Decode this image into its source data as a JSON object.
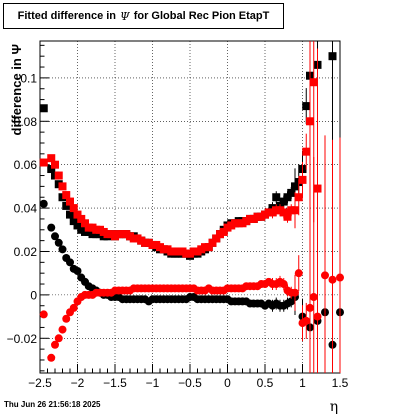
{
  "title": {
    "prefix": "Fitted difference in",
    "symbol": "Ψ",
    "suffix": "for Global Rec Pion EtapT"
  },
  "datestamp": "Thu Jun 26 21:56:18 2025",
  "colors": {
    "series_black": "#000000",
    "series_red": "#ff0000",
    "grid": "#000000"
  },
  "chart_data": {
    "type": "scatter",
    "xlabel": "η",
    "ylabel": "difference in Ψ",
    "xlim": [
      -2.5,
      1.5
    ],
    "ylim": [
      -0.036,
      0.117
    ],
    "xticks": [
      -2.5,
      -2,
      -1.5,
      -1,
      -0.5,
      0,
      0.5,
      1,
      1.5
    ],
    "xtick_labels": [
      "−2.5",
      "−2",
      "−1.5",
      "−1",
      "−0.5",
      "0",
      "0.5",
      "1",
      "1.5"
    ],
    "yticks": [
      -0.02,
      0,
      0.02,
      0.04,
      0.06,
      0.08,
      0.1
    ],
    "ytick_labels": [
      "−0.02",
      "0",
      "0.02",
      "0.04",
      "0.06",
      "0.08",
      "0.1"
    ],
    "grid": true,
    "series": [
      {
        "marker": "square",
        "color": "#000000",
        "x": [
          -2.45,
          -2.35,
          -2.3,
          -2.25,
          -2.2,
          -2.15,
          -2.1,
          -2.05,
          -2.0,
          -1.95,
          -1.9,
          -1.85,
          -1.8,
          -1.75,
          -1.7,
          -1.65,
          -1.6,
          -1.55,
          -1.5,
          -1.45,
          -1.4,
          -1.35,
          -1.3,
          -1.25,
          -1.2,
          -1.15,
          -1.1,
          -1.05,
          -1.0,
          -0.95,
          -0.9,
          -0.85,
          -0.8,
          -0.75,
          -0.7,
          -0.65,
          -0.6,
          -0.55,
          -0.5,
          -0.45,
          -0.4,
          -0.35,
          -0.3,
          -0.25,
          -0.2,
          -0.15,
          -0.1,
          -0.05,
          0.0,
          0.05,
          0.1,
          0.15,
          0.2,
          0.25,
          0.3,
          0.35,
          0.4,
          0.45,
          0.5,
          0.55,
          0.6,
          0.65,
          0.7,
          0.75,
          0.8,
          0.85,
          0.9,
          0.95,
          1.0,
          1.05,
          1.1,
          1.2,
          1.4
        ],
        "y": [
          0.086,
          0.058,
          0.055,
          0.051,
          0.045,
          0.041,
          0.037,
          0.034,
          0.032,
          0.03,
          0.029,
          0.029,
          0.028,
          0.028,
          0.028,
          0.027,
          0.027,
          0.028,
          0.027,
          0.028,
          0.028,
          0.028,
          0.027,
          0.027,
          0.026,
          0.025,
          0.024,
          0.024,
          0.023,
          0.022,
          0.021,
          0.021,
          0.02,
          0.019,
          0.019,
          0.019,
          0.019,
          0.019,
          0.018,
          0.019,
          0.019,
          0.02,
          0.021,
          0.022,
          0.024,
          0.026,
          0.028,
          0.03,
          0.032,
          0.033,
          0.033,
          0.034,
          0.034,
          0.034,
          0.035,
          0.035,
          0.036,
          0.036,
          0.037,
          0.038,
          0.04,
          0.045,
          0.041,
          0.043,
          0.045,
          0.047,
          0.05,
          0.052,
          0.058,
          0.087,
          0.101,
          0.106,
          0.11
        ]
      },
      {
        "marker": "circle",
        "color": "#000000",
        "x": [
          -2.45,
          -2.35,
          -2.3,
          -2.25,
          -2.2,
          -2.15,
          -2.1,
          -2.05,
          -2.0,
          -1.95,
          -1.9,
          -1.85,
          -1.8,
          -1.75,
          -1.7,
          -1.65,
          -1.6,
          -1.55,
          -1.5,
          -1.45,
          -1.4,
          -1.35,
          -1.3,
          -1.25,
          -1.2,
          -1.15,
          -1.1,
          -1.05,
          -1.0,
          -0.95,
          -0.9,
          -0.85,
          -0.8,
          -0.75,
          -0.7,
          -0.65,
          -0.6,
          -0.55,
          -0.5,
          -0.45,
          -0.4,
          -0.35,
          -0.3,
          -0.25,
          -0.2,
          -0.15,
          -0.1,
          -0.05,
          0.0,
          0.05,
          0.1,
          0.15,
          0.2,
          0.25,
          0.3,
          0.35,
          0.4,
          0.45,
          0.5,
          0.55,
          0.6,
          0.65,
          0.7,
          0.75,
          0.8,
          0.85,
          0.9,
          1.0,
          1.1,
          1.2,
          1.3,
          1.4,
          1.5
        ],
        "y": [
          0.042,
          0.031,
          0.027,
          0.024,
          0.021,
          0.017,
          0.015,
          0.012,
          0.011,
          0.008,
          0.006,
          0.004,
          0.003,
          0.002,
          0.001,
          0.0,
          0.0,
          -0.001,
          -0.001,
          -0.001,
          -0.002,
          -0.002,
          -0.002,
          -0.002,
          -0.002,
          -0.002,
          -0.002,
          -0.003,
          -0.002,
          -0.002,
          -0.002,
          -0.002,
          -0.002,
          -0.002,
          -0.002,
          -0.002,
          -0.002,
          -0.002,
          -0.001,
          -0.001,
          -0.002,
          -0.002,
          -0.002,
          -0.002,
          -0.002,
          -0.002,
          -0.002,
          -0.002,
          -0.002,
          -0.003,
          -0.003,
          -0.003,
          -0.003,
          -0.003,
          -0.004,
          -0.004,
          -0.004,
          -0.004,
          -0.005,
          -0.004,
          -0.005,
          -0.004,
          -0.005,
          -0.005,
          -0.004,
          -0.003,
          -0.001,
          -0.01,
          -0.015,
          -0.012,
          -0.008,
          -0.023,
          -0.008
        ]
      },
      {
        "marker": "square",
        "color": "#ff0000",
        "x": [
          -2.45,
          -2.35,
          -2.3,
          -2.25,
          -2.2,
          -2.15,
          -2.1,
          -2.05,
          -2.0,
          -1.95,
          -1.9,
          -1.85,
          -1.8,
          -1.75,
          -1.7,
          -1.65,
          -1.6,
          -1.55,
          -1.5,
          -1.45,
          -1.4,
          -1.35,
          -1.3,
          -1.25,
          -1.2,
          -1.15,
          -1.1,
          -1.05,
          -1.0,
          -0.95,
          -0.9,
          -0.85,
          -0.8,
          -0.75,
          -0.7,
          -0.65,
          -0.6,
          -0.55,
          -0.5,
          -0.45,
          -0.4,
          -0.35,
          -0.3,
          -0.25,
          -0.2,
          -0.15,
          -0.1,
          -0.05,
          0.0,
          0.05,
          0.1,
          0.15,
          0.2,
          0.25,
          0.3,
          0.35,
          0.4,
          0.45,
          0.5,
          0.55,
          0.6,
          0.65,
          0.7,
          0.75,
          0.8,
          0.85,
          0.9,
          0.95,
          1.0,
          1.05,
          1.1,
          1.15,
          1.2
        ],
        "y": [
          0.061,
          0.063,
          0.06,
          0.055,
          0.05,
          0.046,
          0.043,
          0.04,
          0.037,
          0.035,
          0.033,
          0.031,
          0.031,
          0.03,
          0.03,
          0.029,
          0.028,
          0.028,
          0.027,
          0.028,
          0.028,
          0.028,
          0.027,
          0.026,
          0.026,
          0.025,
          0.024,
          0.024,
          0.023,
          0.023,
          0.022,
          0.021,
          0.021,
          0.02,
          0.02,
          0.02,
          0.02,
          0.019,
          0.019,
          0.02,
          0.02,
          0.021,
          0.022,
          0.022,
          0.024,
          0.026,
          0.028,
          0.029,
          0.031,
          0.032,
          0.033,
          0.033,
          0.033,
          0.034,
          0.035,
          0.035,
          0.036,
          0.036,
          0.037,
          0.038,
          0.038,
          0.039,
          0.039,
          0.038,
          0.036,
          0.039,
          0.039,
          0.045,
          0.053,
          0.066,
          0.08,
          0.098,
          0.049
        ]
      },
      {
        "marker": "circle",
        "color": "#ff0000",
        "x": [
          -2.45,
          -2.35,
          -2.3,
          -2.25,
          -2.2,
          -2.15,
          -2.1,
          -2.05,
          -2.0,
          -1.95,
          -1.9,
          -1.85,
          -1.8,
          -1.75,
          -1.7,
          -1.65,
          -1.6,
          -1.55,
          -1.5,
          -1.45,
          -1.4,
          -1.35,
          -1.3,
          -1.25,
          -1.2,
          -1.15,
          -1.1,
          -1.05,
          -1.0,
          -0.95,
          -0.9,
          -0.85,
          -0.8,
          -0.75,
          -0.7,
          -0.65,
          -0.6,
          -0.55,
          -0.5,
          -0.45,
          -0.4,
          -0.35,
          -0.3,
          -0.25,
          -0.2,
          -0.15,
          -0.1,
          -0.05,
          0.0,
          0.05,
          0.1,
          0.15,
          0.2,
          0.25,
          0.3,
          0.35,
          0.4,
          0.45,
          0.5,
          0.55,
          0.6,
          0.65,
          0.7,
          0.75,
          0.8,
          0.85,
          0.9,
          0.95,
          1.0,
          1.05,
          1.1,
          1.15,
          1.2,
          1.3,
          1.4,
          1.5
        ],
        "y": [
          -0.009,
          -0.029,
          -0.023,
          -0.02,
          -0.016,
          -0.011,
          -0.008,
          -0.006,
          -0.003,
          -0.001,
          0.0,
          0.0,
          0.0,
          0.001,
          0.001,
          0.001,
          0.001,
          0.001,
          0.002,
          0.002,
          0.002,
          0.002,
          0.002,
          0.003,
          0.003,
          0.003,
          0.003,
          0.003,
          0.003,
          0.003,
          0.003,
          0.003,
          0.003,
          0.003,
          0.003,
          0.003,
          0.003,
          0.003,
          0.003,
          0.003,
          0.002,
          0.002,
          0.002,
          0.003,
          0.002,
          0.002,
          0.002,
          0.002,
          0.003,
          0.003,
          0.003,
          0.003,
          0.003,
          0.004,
          0.004,
          0.004,
          0.004,
          0.005,
          0.005,
          0.006,
          0.005,
          0.005,
          0.006,
          0.005,
          0.002,
          0.001,
          0.001,
          0.01,
          -0.013,
          -0.012,
          -0.006,
          -0.001,
          -0.01,
          0.009,
          0.007,
          0.008
        ]
      }
    ]
  }
}
